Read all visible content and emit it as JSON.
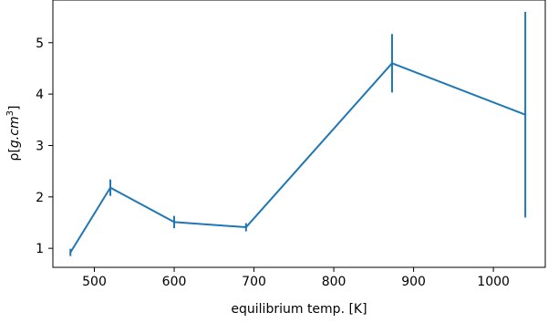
{
  "chart_data": {
    "type": "line",
    "title": "",
    "xlabel": "equilibrium temp. [K]",
    "ylabel": {
      "prefix": "ρ[",
      "units_text": "g.cm",
      "superscript": "3",
      "suffix": "]"
    },
    "xlim": [
      448,
      1065
    ],
    "ylim": [
      0.63,
      5.83
    ],
    "x_ticks": [
      500,
      600,
      700,
      800,
      900,
      1000
    ],
    "y_ticks": [
      1,
      2,
      3,
      4,
      5
    ],
    "grid": false,
    "legend": "none",
    "series": [
      {
        "color": "#1f77b4",
        "points": [
          {
            "x": 470,
            "y": 0.92,
            "err": 0.07
          },
          {
            "x": 520,
            "y": 2.18,
            "err": 0.16
          },
          {
            "x": 600,
            "y": 1.51,
            "err": 0.12
          },
          {
            "x": 690,
            "y": 1.41,
            "err": 0.08
          },
          {
            "x": 873,
            "y": 4.6,
            "err": 0.57
          },
          {
            "x": 1040,
            "y": 3.6,
            "err": 2.0
          }
        ]
      }
    ]
  }
}
